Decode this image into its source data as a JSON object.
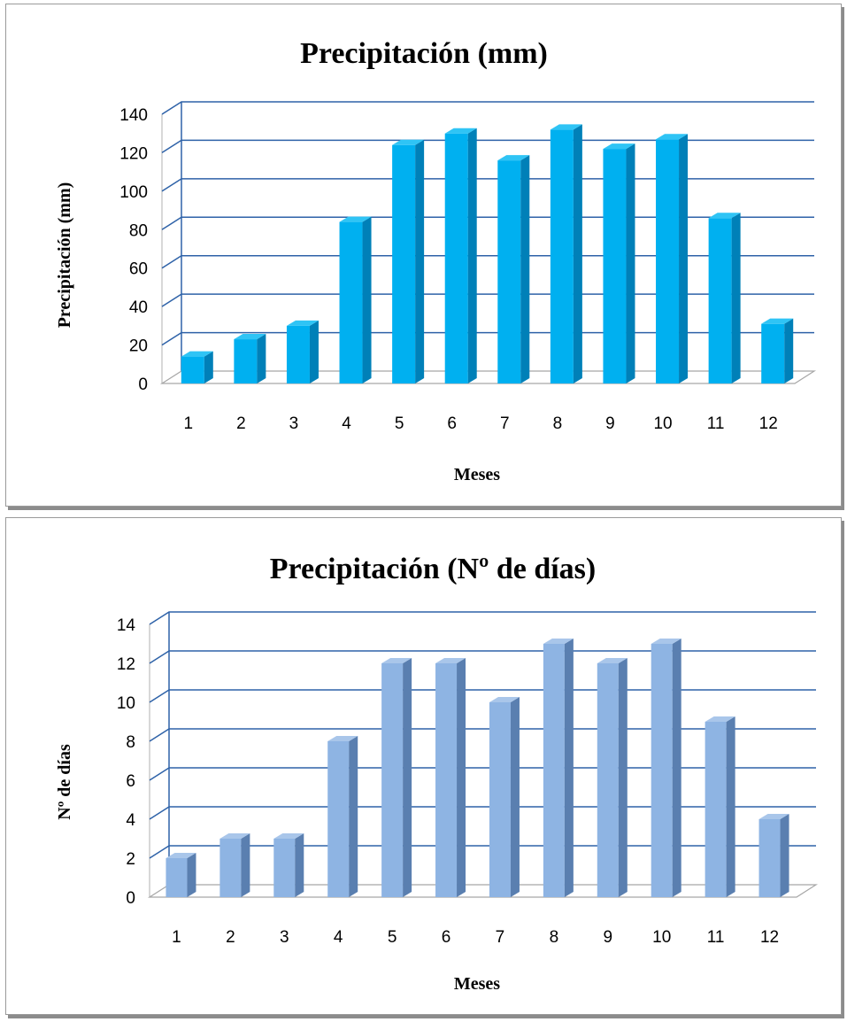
{
  "chart_data": [
    {
      "type": "bar",
      "title": "Precipitación  (mm)",
      "xlabel": "Meses",
      "ylabel": "Precipitación (mm)",
      "categories": [
        "1",
        "2",
        "3",
        "4",
        "5",
        "6",
        "7",
        "8",
        "9",
        "10",
        "11",
        "12"
      ],
      "values": [
        14,
        23,
        30,
        84,
        124,
        130,
        116,
        132,
        122,
        127,
        86,
        31
      ],
      "ylim": [
        0,
        140
      ],
      "yticks": [
        "0",
        "20",
        "40",
        "60",
        "80",
        "100",
        "120",
        "140"
      ],
      "grid": true,
      "legend": "none",
      "bar_color": "#00b0f0",
      "bar_side_color": "#0080b8",
      "bar_top_color": "#2fc4f5",
      "grid_color": "#2e62a8"
    },
    {
      "type": "bar",
      "title": "Precipitación  (Nº de días)",
      "xlabel": "Meses",
      "ylabel": "Nº de días",
      "categories": [
        "1",
        "2",
        "3",
        "4",
        "5",
        "6",
        "7",
        "8",
        "9",
        "10",
        "11",
        "12"
      ],
      "values": [
        2,
        3,
        3,
        8,
        12,
        12,
        10,
        13,
        12,
        13,
        9,
        4
      ],
      "ylim": [
        0,
        14
      ],
      "yticks": [
        "0",
        "2",
        "4",
        "6",
        "8",
        "10",
        "12",
        "14"
      ],
      "grid": true,
      "legend": "none",
      "bar_color": "#8eb4e3",
      "bar_side_color": "#5a7fb0",
      "bar_top_color": "#a9c6ea",
      "grid_color": "#2e62a8"
    }
  ]
}
